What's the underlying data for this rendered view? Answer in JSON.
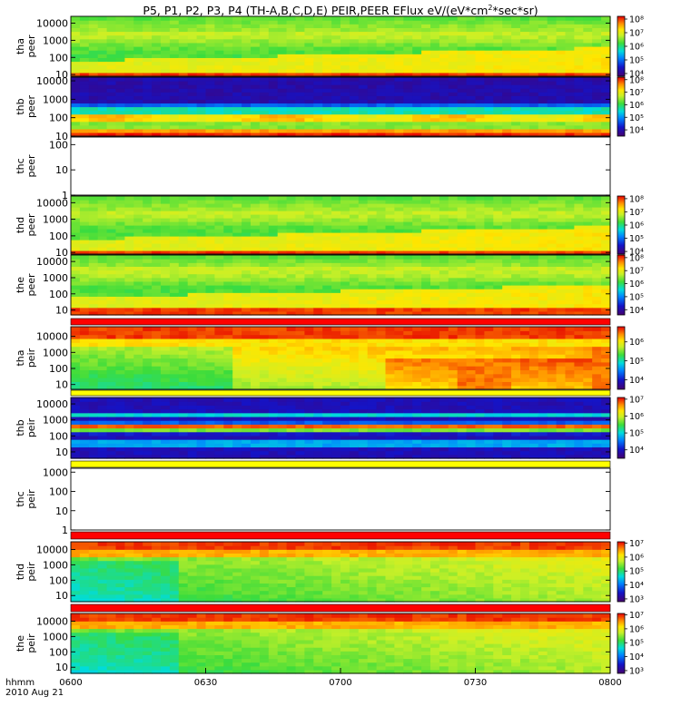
{
  "title": {
    "main": "P5, P1, P2, P3, P4 (TH-A,B,C,D,E) PEIR,PEER EFlux eV/(eV*cm",
    "sup": "2",
    "rest": "*sec*sr)"
  },
  "footer": {
    "line1": "hhmm",
    "line2": "2010 Aug 21"
  },
  "chart_data": {
    "type": "heatmap",
    "title": "P5, P1, P2, P3, P4 (TH-A,B,C,D,E) PEIR,PEER EFlux eV/(eV*cm^2*sec*sr)",
    "x_ticks": [
      "0600",
      "0630",
      "0700",
      "0730",
      "0800"
    ],
    "x_range_minutes": [
      0,
      120
    ],
    "panels": [
      {
        "id": "tha_peer",
        "label": [
          "tha",
          "peer"
        ],
        "y_ticks": [
          "10",
          "100",
          "1000",
          "10000"
        ],
        "y_log_range": [
          0.9,
          4.4
        ],
        "has_data": true,
        "kind": "peer_green",
        "colorbar": {
          "ticks": [
            "10⁴",
            "10⁵",
            "10⁶",
            "10⁷",
            "10⁸"
          ],
          "log_range": [
            3.8,
            8.2
          ]
        }
      },
      {
        "id": "thb_peer",
        "label": [
          "thb",
          "peer"
        ],
        "y_ticks": [
          "10",
          "100",
          "1000",
          "10000"
        ],
        "y_log_range": [
          1,
          4.2
        ],
        "has_data": true,
        "kind": "peer_bands",
        "colorbar": {
          "ticks": [
            "10⁴",
            "10⁵",
            "10⁶",
            "10⁷",
            "10⁸"
          ],
          "log_range": [
            3.5,
            8.2
          ]
        }
      },
      {
        "id": "thc_peer",
        "label": [
          "thc",
          "peer"
        ],
        "y_ticks": [
          "1",
          "10",
          "100"
        ],
        "y_log_range": [
          0,
          2.3
        ],
        "has_data": false,
        "kind": "empty"
      },
      {
        "id": "thd_peer",
        "label": [
          "thd",
          "peer"
        ],
        "y_ticks": [
          "10",
          "100",
          "1000",
          "10000"
        ],
        "y_log_range": [
          0.9,
          4.4
        ],
        "has_data": true,
        "kind": "peer_green",
        "colorbar": {
          "ticks": [
            "10⁴",
            "10⁵",
            "10⁶",
            "10⁷",
            "10⁸"
          ],
          "log_range": [
            3.8,
            8.2
          ]
        }
      },
      {
        "id": "the_peer",
        "label": [
          "the",
          "peer"
        ],
        "y_ticks": [
          "10",
          "100",
          "1000",
          "10000"
        ],
        "y_log_range": [
          0.7,
          4.4
        ],
        "has_data": true,
        "kind": "peer_green",
        "colorbar": {
          "ticks": [
            "10⁴",
            "10⁵",
            "10⁶",
            "10⁷",
            "10⁸"
          ],
          "log_range": [
            3.6,
            8.2
          ]
        }
      },
      {
        "id": "tha_peir",
        "label": [
          "tha",
          "peir"
        ],
        "y_ticks": [
          "10",
          "100",
          "1000",
          "10000"
        ],
        "y_log_range": [
          0.7,
          4.6
        ],
        "has_data": true,
        "kind": "peir_a",
        "colorbar": {
          "ticks": [
            "10⁴",
            "10⁵",
            "10⁶"
          ],
          "log_range": [
            3.5,
            6.8
          ]
        }
      },
      {
        "id": "thb_peir",
        "label": [
          "thb",
          "peir"
        ],
        "y_ticks": [
          "10",
          "100",
          "1000",
          "10000"
        ],
        "y_log_range": [
          0.6,
          4.4
        ],
        "has_data": true,
        "kind": "peir_b",
        "colorbar": {
          "ticks": [
            "10⁴",
            "10⁵",
            "10⁶",
            "10⁷"
          ],
          "log_range": [
            3.5,
            7.1
          ]
        }
      },
      {
        "id": "thc_peir",
        "label": [
          "thc",
          "peir"
        ],
        "y_ticks": [
          "1",
          "10",
          "100",
          "1000"
        ],
        "y_log_range": [
          0,
          3.2
        ],
        "has_data": false,
        "kind": "empty"
      },
      {
        "id": "thd_peir",
        "label": [
          "thd",
          "peir"
        ],
        "y_ticks": [
          "10",
          "100",
          "1000",
          "10000"
        ],
        "y_log_range": [
          0.6,
          4.5
        ],
        "has_data": true,
        "kind": "peir_d",
        "colorbar": {
          "ticks": [
            "10³",
            "10⁴",
            "10⁵",
            "10⁶",
            "10⁷"
          ],
          "log_range": [
            2.8,
            7.1
          ]
        }
      },
      {
        "id": "the_peir",
        "label": [
          "the",
          "peir"
        ],
        "y_ticks": [
          "10",
          "100",
          "1000",
          "10000"
        ],
        "y_log_range": [
          0.6,
          4.5
        ],
        "has_data": true,
        "kind": "peir_d",
        "colorbar": {
          "ticks": [
            "10³",
            "10⁴",
            "10⁵",
            "10⁶",
            "10⁷"
          ],
          "log_range": [
            2.8,
            7.1
          ]
        }
      }
    ]
  }
}
